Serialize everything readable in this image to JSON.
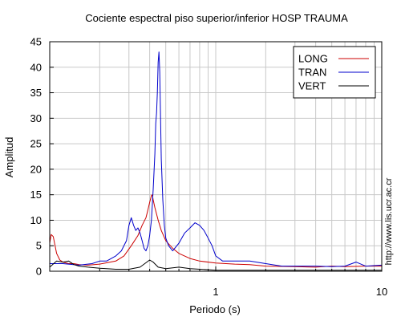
{
  "chart_data": {
    "type": "line",
    "title": "Cociente espectral piso superior/inferior  HOSP TRAUMA",
    "xlabel": "Periodo (s)",
    "ylabel": "Amplitud",
    "side_note": "http://www.lis.ucr.ac.cr",
    "x_scale": "log",
    "xlim": [
      0.1,
      10
    ],
    "ylim": [
      0,
      45
    ],
    "x_tick_labels": [
      {
        "value": 1,
        "label": "1"
      },
      {
        "value": 10,
        "label": "10"
      }
    ],
    "y_ticks": [
      0,
      5,
      10,
      15,
      20,
      25,
      30,
      35,
      40,
      45
    ],
    "grid": true,
    "legend_position": "top-right",
    "series": [
      {
        "name": "LONG",
        "color": "#cc0000",
        "points": [
          [
            0.1,
            5.5
          ],
          [
            0.102,
            7.2
          ],
          [
            0.105,
            6.8
          ],
          [
            0.11,
            3.5
          ],
          [
            0.115,
            2.2
          ],
          [
            0.12,
            1.8
          ],
          [
            0.13,
            1.5
          ],
          [
            0.14,
            1.5
          ],
          [
            0.15,
            1.3
          ],
          [
            0.17,
            1.2
          ],
          [
            0.2,
            1.4
          ],
          [
            0.25,
            2.0
          ],
          [
            0.28,
            3.0
          ],
          [
            0.31,
            5.0
          ],
          [
            0.34,
            7.0
          ],
          [
            0.36,
            9.0
          ],
          [
            0.38,
            10.5
          ],
          [
            0.39,
            12.0
          ],
          [
            0.4,
            13.5
          ],
          [
            0.41,
            14.8
          ],
          [
            0.415,
            15.0
          ],
          [
            0.42,
            14.0
          ],
          [
            0.43,
            12.5
          ],
          [
            0.45,
            10.0
          ],
          [
            0.47,
            8.0
          ],
          [
            0.5,
            6.0
          ],
          [
            0.55,
            4.5
          ],
          [
            0.6,
            3.5
          ],
          [
            0.7,
            2.5
          ],
          [
            0.8,
            2.0
          ],
          [
            1.0,
            1.6
          ],
          [
            1.3,
            1.4
          ],
          [
            1.6,
            1.3
          ],
          [
            2.0,
            1.0
          ],
          [
            3.0,
            0.9
          ],
          [
            4.0,
            0.8
          ],
          [
            5.0,
            1.0
          ],
          [
            6.0,
            0.9
          ],
          [
            8.0,
            1.0
          ],
          [
            10.0,
            1.0
          ]
        ]
      },
      {
        "name": "TRAN",
        "color": "#0000cc",
        "points": [
          [
            0.1,
            1.5
          ],
          [
            0.12,
            1.5
          ],
          [
            0.15,
            1.2
          ],
          [
            0.18,
            1.5
          ],
          [
            0.2,
            2.0
          ],
          [
            0.22,
            2.0
          ],
          [
            0.25,
            3.0
          ],
          [
            0.27,
            4.0
          ],
          [
            0.29,
            6.0
          ],
          [
            0.3,
            9.0
          ],
          [
            0.31,
            10.5
          ],
          [
            0.32,
            9.0
          ],
          [
            0.33,
            8.0
          ],
          [
            0.34,
            8.5
          ],
          [
            0.35,
            7.5
          ],
          [
            0.36,
            6.0
          ],
          [
            0.37,
            4.5
          ],
          [
            0.38,
            4.0
          ],
          [
            0.39,
            5.0
          ],
          [
            0.4,
            7.0
          ],
          [
            0.41,
            10.0
          ],
          [
            0.42,
            16.0
          ],
          [
            0.43,
            23.0
          ],
          [
            0.435,
            29.0
          ],
          [
            0.44,
            31.0
          ],
          [
            0.445,
            35.0
          ],
          [
            0.45,
            41.0
          ],
          [
            0.455,
            43.0
          ],
          [
            0.46,
            39.0
          ],
          [
            0.465,
            30.0
          ],
          [
            0.47,
            22.0
          ],
          [
            0.48,
            14.0
          ],
          [
            0.49,
            9.0
          ],
          [
            0.5,
            6.5
          ],
          [
            0.52,
            5.0
          ],
          [
            0.55,
            4.0
          ],
          [
            0.6,
            5.5
          ],
          [
            0.65,
            7.5
          ],
          [
            0.7,
            8.5
          ],
          [
            0.75,
            9.5
          ],
          [
            0.8,
            9.0
          ],
          [
            0.85,
            8.0
          ],
          [
            0.9,
            6.5
          ],
          [
            0.95,
            5.0
          ],
          [
            1.0,
            3.0
          ],
          [
            1.1,
            2.0
          ],
          [
            1.3,
            2.0
          ],
          [
            1.6,
            2.0
          ],
          [
            2.0,
            1.5
          ],
          [
            2.5,
            1.0
          ],
          [
            3.0,
            1.0
          ],
          [
            4.0,
            1.0
          ],
          [
            5.0,
            0.9
          ],
          [
            6.0,
            1.0
          ],
          [
            7.0,
            1.8
          ],
          [
            8.0,
            1.0
          ],
          [
            10.0,
            1.2
          ]
        ]
      },
      {
        "name": "VERT",
        "color": "#000000",
        "points": [
          [
            0.1,
            0.8
          ],
          [
            0.11,
            2.0
          ],
          [
            0.12,
            1.8
          ],
          [
            0.13,
            2.0
          ],
          [
            0.14,
            1.3
          ],
          [
            0.15,
            1.0
          ],
          [
            0.17,
            0.8
          ],
          [
            0.2,
            0.6
          ],
          [
            0.25,
            0.4
          ],
          [
            0.3,
            0.4
          ],
          [
            0.35,
            0.8
          ],
          [
            0.4,
            2.2
          ],
          [
            0.42,
            1.8
          ],
          [
            0.45,
            0.8
          ],
          [
            0.5,
            0.5
          ],
          [
            0.6,
            0.8
          ],
          [
            0.7,
            0.5
          ],
          [
            1.0,
            0.2
          ],
          [
            1.5,
            0.2
          ],
          [
            2.0,
            0.2
          ],
          [
            3.0,
            0.2
          ],
          [
            5.0,
            0.2
          ],
          [
            7.0,
            0.2
          ],
          [
            10.0,
            0.2
          ]
        ]
      }
    ]
  }
}
